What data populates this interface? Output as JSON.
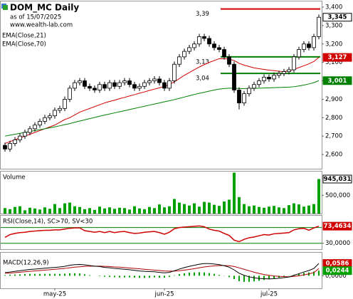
{
  "chart_data": [
    {
      "type": "candlestick",
      "title": "DOM_MC Daily",
      "subtitle": "as of 15/07/2025",
      "source": "www.wealth-lab.com",
      "categories": [
        null,
        null,
        null,
        null,
        null,
        null,
        null,
        null,
        null,
        null,
        "may-25",
        null,
        null,
        null,
        null,
        null,
        null,
        null,
        null,
        null,
        null,
        null,
        null,
        null,
        null,
        null,
        null,
        null,
        null,
        null,
        null,
        null,
        "jun-25",
        null,
        null,
        null,
        null,
        null,
        null,
        null,
        null,
        null,
        null,
        null,
        null,
        null,
        null,
        null,
        null,
        null,
        null,
        null,
        null,
        "jul-25",
        null,
        null,
        null,
        null,
        null,
        null,
        null,
        null,
        null,
        null
      ],
      "open": [
        2.65,
        2.63,
        2.66,
        2.68,
        2.7,
        2.72,
        2.74,
        2.76,
        2.78,
        2.8,
        2.81,
        2.84,
        2.85,
        2.9,
        2.96,
        2.99,
        3.0,
        2.97,
        2.96,
        2.95,
        2.98,
        2.96,
        2.99,
        2.97,
        2.99,
        3.0,
        2.98,
        2.96,
        2.97,
        2.99,
        3.0,
        3.01,
        2.99,
        2.96,
        3.0,
        3.09,
        3.13,
        3.16,
        3.18,
        3.2,
        3.24,
        3.23,
        3.2,
        3.18,
        3.17,
        3.13,
        3.09,
        2.95,
        2.88,
        2.93,
        2.96,
        2.98,
        3.0,
        3.02,
        3.01,
        3.03,
        3.04,
        3.05,
        3.06,
        3.13,
        3.17,
        3.2,
        3.18,
        3.24
      ],
      "high": [
        2.665,
        2.675,
        2.695,
        2.715,
        2.735,
        2.755,
        2.775,
        2.795,
        2.815,
        2.825,
        2.855,
        2.865,
        2.915,
        2.975,
        3.005,
        3.015,
        3.015,
        2.985,
        2.975,
        2.995,
        2.995,
        3.005,
        3.005,
        3.005,
        3.015,
        3.015,
        2.995,
        2.985,
        3.005,
        3.015,
        3.025,
        3.025,
        3.005,
        3.015,
        3.105,
        3.145,
        3.175,
        3.195,
        3.215,
        3.255,
        3.255,
        3.245,
        3.215,
        3.195,
        3.185,
        3.145,
        3.105,
        2.965,
        2.945,
        2.975,
        2.995,
        3.015,
        3.035,
        3.035,
        3.045,
        3.055,
        3.065,
        3.075,
        3.145,
        3.185,
        3.215,
        3.215,
        3.255,
        3.36
      ],
      "low": [
        2.615,
        2.615,
        2.645,
        2.665,
        2.685,
        2.705,
        2.725,
        2.745,
        2.765,
        2.785,
        2.795,
        2.825,
        2.835,
        2.885,
        2.945,
        2.975,
        2.955,
        2.945,
        2.935,
        2.935,
        2.945,
        2.945,
        2.955,
        2.955,
        2.975,
        2.965,
        2.945,
        2.945,
        2.955,
        2.975,
        2.985,
        2.975,
        2.945,
        2.945,
        2.985,
        3.075,
        3.115,
        3.145,
        3.165,
        3.185,
        3.215,
        3.185,
        3.165,
        3.155,
        3.115,
        3.075,
        2.935,
        2.845,
        2.865,
        2.915,
        2.945,
        2.965,
        2.985,
        2.995,
        2.995,
        3.015,
        3.025,
        3.035,
        3.045,
        3.115,
        3.155,
        3.165,
        3.165,
        3.225
      ],
      "close": [
        2.63,
        2.66,
        2.68,
        2.7,
        2.72,
        2.74,
        2.76,
        2.78,
        2.8,
        2.81,
        2.84,
        2.85,
        2.9,
        2.96,
        2.99,
        3.0,
        2.97,
        2.96,
        2.95,
        2.98,
        2.96,
        2.99,
        2.97,
        2.99,
        3.0,
        2.98,
        2.96,
        2.97,
        2.99,
        3.0,
        3.01,
        2.99,
        2.96,
        3.0,
        3.09,
        3.13,
        3.16,
        3.18,
        3.2,
        3.24,
        3.23,
        3.2,
        3.18,
        3.17,
        3.13,
        3.09,
        2.95,
        2.88,
        2.93,
        2.96,
        2.98,
        3.0,
        3.02,
        3.01,
        3.03,
        3.04,
        3.05,
        3.06,
        3.13,
        3.17,
        3.2,
        3.18,
        3.24,
        3.345
      ],
      "close_label": "3,345",
      "ylim": [
        2.523,
        3.427
      ],
      "yticks": [
        {
          "value": 2.6,
          "label": "2,600"
        },
        {
          "value": 2.7,
          "label": "2,700"
        },
        {
          "value": 2.8,
          "label": "2,800"
        },
        {
          "value": 2.9,
          "label": "2,900"
        },
        {
          "value": 3.0,
          "label": "3,000"
        },
        {
          "value": 3.1,
          "label": "3,100"
        },
        {
          "value": 3.2,
          "label": "3,200"
        },
        {
          "value": 3.3,
          "label": "3,300"
        },
        {
          "value": 3.4,
          "label": "3,400"
        }
      ],
      "series": [
        {
          "name": "EMA(Close,21)",
          "color": "#d00000",
          "last_label": "3,127",
          "values": [
            2.66,
            2.67,
            2.68,
            2.69,
            2.7,
            2.71,
            2.72,
            2.73,
            2.74,
            2.75,
            2.76,
            2.775,
            2.79,
            2.8,
            2.815,
            2.83,
            2.84,
            2.85,
            2.86,
            2.87,
            2.88,
            2.888,
            2.895,
            2.903,
            2.91,
            2.918,
            2.925,
            2.933,
            2.94,
            2.948,
            2.955,
            2.962,
            2.97,
            2.98,
            2.995,
            3.012,
            3.03,
            3.045,
            3.06,
            3.075,
            3.088,
            3.1,
            3.11,
            3.12,
            3.12,
            3.118,
            3.11,
            3.095,
            3.085,
            3.078,
            3.07,
            3.066,
            3.062,
            3.058,
            3.055,
            3.052,
            3.05,
            3.054,
            3.062,
            3.072,
            3.082,
            3.092,
            3.105,
            3.127
          ]
        },
        {
          "name": "EMA(Close,70)",
          "color": "#008000",
          "last_label": "3,001",
          "values": [
            2.7,
            2.705,
            2.71,
            2.715,
            2.72,
            2.725,
            2.73,
            2.735,
            2.74,
            2.745,
            2.75,
            2.756,
            2.762,
            2.768,
            2.775,
            2.782,
            2.788,
            2.795,
            2.801,
            2.808,
            2.814,
            2.82,
            2.826,
            2.832,
            2.838,
            2.844,
            2.85,
            2.856,
            2.862,
            2.868,
            2.874,
            2.88,
            2.886,
            2.892,
            2.898,
            2.905,
            2.912,
            2.919,
            2.926,
            2.932,
            2.938,
            2.944,
            2.95,
            2.955,
            2.958,
            2.96,
            2.96,
            2.958,
            2.958,
            2.958,
            2.959,
            2.96,
            2.961,
            2.962,
            2.963,
            2.964,
            2.965,
            2.966,
            2.968,
            2.972,
            2.977,
            2.983,
            2.99,
            3.001
          ]
        }
      ],
      "annotations": [
        {
          "value": 3.39,
          "label": "3,39",
          "color": "#d00000"
        },
        {
          "value": 3.13,
          "label": "3,13",
          "color": "#008000"
        },
        {
          "value": 3.04,
          "label": "3,04",
          "color": "#008000"
        }
      ]
    },
    {
      "type": "bar",
      "name": "Volume",
      "color": "#00a000",
      "last_label": "945,031",
      "values": [
        150000,
        120000,
        180000,
        200000,
        90000,
        160000,
        140000,
        110000,
        170000,
        130000,
        260000,
        150000,
        280000,
        300000,
        200000,
        180000,
        120000,
        150000,
        100000,
        190000,
        140000,
        170000,
        130000,
        160000,
        150000,
        110000,
        200000,
        140000,
        120000,
        180000,
        150000,
        250000,
        170000,
        200000,
        400000,
        300000,
        260000,
        220000,
        280000,
        190000,
        320000,
        300000,
        240000,
        210000,
        330000,
        380000,
        1120000,
        450000,
        260000,
        200000,
        220000,
        180000,
        160000,
        190000,
        210000,
        170000,
        150000,
        230000,
        280000,
        250000,
        190000,
        220000,
        260000,
        945031
      ],
      "ylim": [
        0,
        1150000
      ],
      "yticks": [
        {
          "value": 500000,
          "label": "500,000"
        }
      ]
    },
    {
      "type": "line",
      "name": "RSI(Close,14), SC>70, SV<30",
      "color": "#d00000",
      "last_label": "73,4634",
      "values": [
        45,
        52,
        55,
        57,
        58,
        60,
        61,
        62,
        63,
        63,
        64,
        64,
        66,
        68,
        69,
        69,
        62,
        60,
        58,
        60,
        57,
        60,
        57,
        59,
        60,
        57,
        55,
        56,
        58,
        59,
        60,
        57,
        53,
        58,
        67,
        70,
        71,
        72,
        73,
        74,
        72,
        66,
        63,
        61,
        55,
        50,
        38,
        34,
        40,
        44,
        46,
        49,
        52,
        51,
        54,
        55,
        56,
        57,
        64,
        67,
        68,
        63,
        69,
        73.4634
      ],
      "ylim": [
        15,
        100
      ],
      "yticks": [
        {
          "value": 30,
          "label": "30,0000"
        }
      ],
      "levels": [
        70,
        30
      ],
      "level_color": "#008000"
    },
    {
      "type": "macd",
      "name": "MACD(12,26,9)",
      "macd": {
        "color": "#000000",
        "last_label": "0,0586",
        "values": [
          0.015,
          0.018,
          0.021,
          0.024,
          0.027,
          0.03,
          0.032,
          0.034,
          0.036,
          0.038,
          0.04,
          0.042,
          0.045,
          0.05,
          0.053,
          0.054,
          0.052,
          0.049,
          0.046,
          0.044,
          0.04,
          0.038,
          0.035,
          0.033,
          0.031,
          0.029,
          0.026,
          0.023,
          0.021,
          0.02,
          0.019,
          0.016,
          0.014,
          0.016,
          0.024,
          0.032,
          0.039,
          0.045,
          0.05,
          0.055,
          0.058,
          0.058,
          0.056,
          0.053,
          0.048,
          0.041,
          0.028,
          0.012,
          0.002,
          -0.005,
          -0.01,
          -0.013,
          -0.014,
          -0.015,
          -0.014,
          -0.012,
          -0.009,
          -0.006,
          0.002,
          0.01,
          0.018,
          0.025,
          0.035,
          0.0586
        ]
      },
      "signal": {
        "color": "#b00000",
        "values": [
          0.012,
          0.013,
          0.015,
          0.017,
          0.019,
          0.021,
          0.023,
          0.025,
          0.027,
          0.029,
          0.031,
          0.033,
          0.035,
          0.038,
          0.041,
          0.043,
          0.045,
          0.046,
          0.046,
          0.046,
          0.045,
          0.044,
          0.042,
          0.041,
          0.039,
          0.037,
          0.035,
          0.033,
          0.031,
          0.029,
          0.027,
          0.025,
          0.023,
          0.022,
          0.022,
          0.024,
          0.027,
          0.03,
          0.034,
          0.038,
          0.042,
          0.045,
          0.047,
          0.049,
          0.049,
          0.048,
          0.044,
          0.038,
          0.031,
          0.024,
          0.017,
          0.011,
          0.006,
          0.002,
          -0.001,
          -0.003,
          -0.004,
          -0.005,
          -0.003,
          0.0,
          0.004,
          0.009,
          0.015,
          0.0342
        ]
      },
      "histogram": {
        "color": "#00a000",
        "last_label": "0,0244",
        "values": [
          0.003,
          0.005,
          0.006,
          0.007,
          0.008,
          0.009,
          0.009,
          0.009,
          0.009,
          0.009,
          0.009,
          0.009,
          0.01,
          0.012,
          0.012,
          0.011,
          0.007,
          0.003,
          0.0,
          -0.002,
          -0.005,
          -0.006,
          -0.007,
          -0.008,
          -0.008,
          -0.008,
          -0.009,
          -0.01,
          -0.01,
          -0.009,
          -0.008,
          -0.009,
          -0.009,
          -0.006,
          0.002,
          0.008,
          0.012,
          0.015,
          0.016,
          0.017,
          0.016,
          0.013,
          0.009,
          0.004,
          -0.001,
          -0.007,
          -0.016,
          -0.026,
          -0.029,
          -0.029,
          -0.027,
          -0.024,
          -0.02,
          -0.017,
          -0.013,
          -0.009,
          -0.005,
          -0.001,
          0.005,
          0.01,
          0.014,
          0.016,
          0.02,
          0.0244
        ]
      },
      "ylim": [
        -0.06,
        0.11
      ],
      "yticks": [
        {
          "value": 0,
          "label": "0,0000"
        }
      ]
    }
  ]
}
